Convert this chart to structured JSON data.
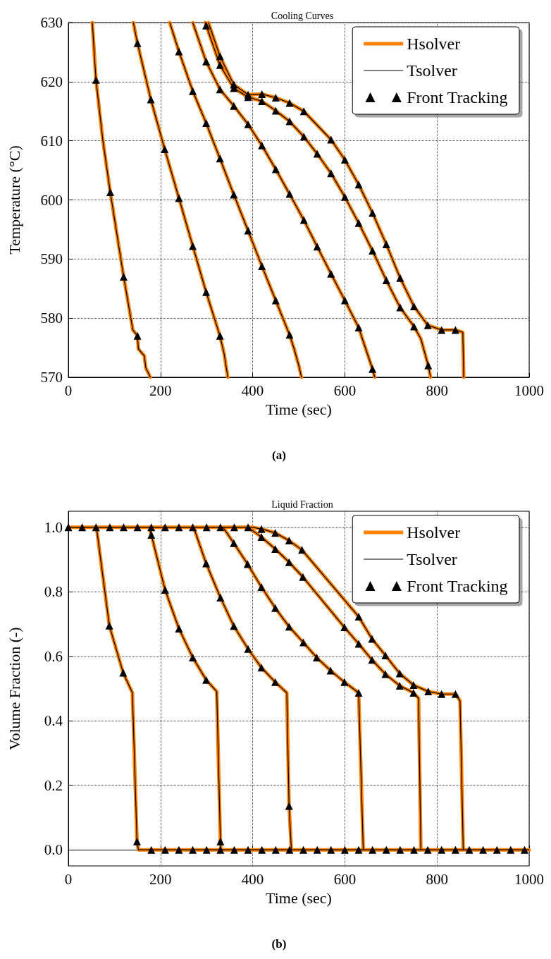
{
  "chart_data": [
    {
      "type": "line",
      "title": "Cooling Curves",
      "xlabel": "Time (sec)",
      "ylabel": "Temperature (°C)",
      "annotations": [
        "(a)"
      ],
      "xlim": [
        0,
        1000
      ],
      "xticks": [
        0,
        200,
        400,
        600,
        800,
        1000
      ],
      "ylim": [
        570,
        630
      ],
      "yticks": [
        570,
        580,
        590,
        600,
        610,
        620,
        630
      ],
      "grid": true,
      "legend": "top right",
      "series": [
        {
          "name": "Hsolver",
          "color": "#ff8000",
          "marker": "none",
          "line_style": "solid",
          "x": [
            52,
            60,
            75,
            91,
            120,
            140,
            150,
            152,
            165,
            168,
            178,
            null,
            141,
            150,
            179,
            209,
            240,
            270,
            299,
            329,
            338,
            346,
            null,
            220,
            240,
            270,
            299,
            329,
            359,
            390,
            420,
            450,
            480,
            490,
            500,
            506,
            null,
            270,
            299,
            329,
            359,
            390,
            420,
            450,
            480,
            511,
            540,
            570,
            600,
            630,
            660,
            665,
            null,
            297,
            329,
            359,
            390,
            420,
            450,
            480,
            511,
            540,
            570,
            600,
            630,
            660,
            690,
            720,
            750,
            765,
            781,
            786,
            null,
            304,
            329,
            359,
            390,
            420,
            450,
            480,
            511,
            570,
            600,
            630,
            660,
            690,
            720,
            750,
            780,
            810,
            840,
            856,
            858
          ],
          "values": [
            630,
            620.3,
            610,
            601.3,
            587,
            578,
            577,
            574.8,
            573.6,
            571.6,
            570,
            null,
            630,
            626.5,
            617,
            608.6,
            600.3,
            592.2,
            584.4,
            577,
            574,
            570,
            null,
            630,
            625.1,
            618.4,
            613,
            607,
            600.9,
            594.8,
            588.8,
            583,
            577.2,
            574.8,
            572,
            570,
            null,
            630,
            623.4,
            618.7,
            615.9,
            612.8,
            609.2,
            605.2,
            601,
            596.6,
            592.1,
            587.5,
            583,
            578.4,
            571.4,
            570,
            null,
            630,
            622.8,
            618.9,
            617.4,
            616.7,
            615.1,
            613.3,
            610.7,
            607.8,
            604.5,
            600.5,
            596.1,
            591.4,
            586.4,
            581.8,
            578.6,
            576.5,
            572,
            570,
            null,
            630,
            624.3,
            619.5,
            617.8,
            617.9,
            617.3,
            616.4,
            615,
            610.2,
            606.8,
            602.6,
            597.8,
            592.5,
            586.8,
            582,
            578.8,
            578,
            578,
            577.6,
            570
          ]
        },
        {
          "name": "Tsolver",
          "color": "#000000",
          "marker": "none",
          "line_style": "solid",
          "x": [
            52,
            60,
            75,
            91,
            120,
            140,
            150,
            152,
            165,
            168,
            178,
            null,
            141,
            150,
            179,
            209,
            240,
            270,
            299,
            329,
            338,
            346,
            null,
            220,
            240,
            270,
            299,
            329,
            359,
            390,
            420,
            450,
            480,
            490,
            500,
            506,
            null,
            270,
            299,
            329,
            359,
            390,
            420,
            450,
            480,
            511,
            540,
            570,
            600,
            630,
            660,
            665,
            null,
            297,
            329,
            359,
            390,
            420,
            450,
            480,
            511,
            540,
            570,
            600,
            630,
            660,
            690,
            720,
            750,
            765,
            781,
            786,
            null,
            304,
            329,
            359,
            390,
            420,
            450,
            480,
            511,
            570,
            600,
            630,
            660,
            690,
            720,
            750,
            780,
            810,
            840,
            856,
            858
          ],
          "values": [
            630,
            620.3,
            610,
            601.3,
            587,
            578,
            577,
            574.8,
            573.6,
            571.6,
            570,
            null,
            630,
            626.5,
            617,
            608.6,
            600.3,
            592.2,
            584.4,
            577,
            574,
            570,
            null,
            630,
            625.1,
            618.4,
            613,
            607,
            600.9,
            594.8,
            588.8,
            583,
            577.2,
            574.8,
            572,
            570,
            null,
            630,
            623.4,
            618.7,
            615.9,
            612.8,
            609.2,
            605.2,
            601,
            596.6,
            592.1,
            587.5,
            583,
            578.4,
            571.4,
            570,
            null,
            630,
            622.8,
            618.9,
            617.4,
            616.7,
            615.1,
            613.3,
            610.7,
            607.8,
            604.5,
            600.5,
            596.1,
            591.4,
            586.4,
            581.8,
            578.6,
            576.5,
            572,
            570,
            null,
            630,
            624.3,
            619.5,
            617.8,
            617.9,
            617.3,
            616.4,
            615,
            610.2,
            606.8,
            602.6,
            597.8,
            592.5,
            586.8,
            582,
            578.8,
            578,
            578,
            577.6,
            570
          ]
        },
        {
          "name": "Front Tracking",
          "type": "scatter",
          "color": "#000000",
          "marker": "triangle",
          "x": [
            60,
            91,
            120,
            150,
            150,
            179,
            209,
            240,
            270,
            299,
            329,
            240,
            270,
            299,
            329,
            359,
            390,
            420,
            450,
            480,
            299,
            329,
            359,
            390,
            420,
            450,
            480,
            511,
            540,
            570,
            600,
            630,
            660,
            299,
            329,
            359,
            390,
            420,
            450,
            480,
            511,
            540,
            570,
            600,
            630,
            660,
            690,
            720,
            750,
            781,
            329,
            359,
            390,
            420,
            450,
            480,
            511,
            570,
            600,
            630,
            660,
            690,
            720,
            750,
            780,
            810,
            840
          ],
          "values": [
            620.3,
            601.3,
            587,
            577,
            626.5,
            617,
            608.6,
            600.3,
            592.2,
            584.4,
            577,
            625.1,
            618.4,
            613,
            607,
            600.9,
            594.8,
            588.8,
            583,
            577.2,
            623.4,
            618.7,
            615.9,
            612.8,
            609.2,
            605.2,
            601,
            596.6,
            592.1,
            587.5,
            583,
            578.4,
            571.4,
            629.5,
            622.8,
            618.9,
            617.4,
            616.7,
            615.1,
            613.3,
            610.7,
            607.8,
            604.5,
            600.5,
            596.1,
            591.4,
            586.4,
            581.8,
            578.6,
            572,
            624.3,
            619.5,
            617.8,
            617.9,
            617.3,
            616.4,
            615,
            610.2,
            606.8,
            602.6,
            597.8,
            592.5,
            586.8,
            582,
            578.8,
            578,
            578
          ]
        }
      ]
    },
    {
      "type": "line",
      "title": "Liquid Fraction",
      "xlabel": "Time (sec)",
      "ylabel": "Volume Fraction (-)",
      "annotations": [
        "(b)"
      ],
      "xlim": [
        0,
        1000
      ],
      "xticks": [
        0,
        200,
        400,
        600,
        800,
        1000
      ],
      "ylim": [
        -0.05,
        1.05
      ],
      "yticks": [
        {
          "value": 0,
          "label": "0.0"
        },
        {
          "value": 0.2,
          "label": "0.2"
        },
        {
          "value": 0.4,
          "label": "0.4"
        },
        {
          "value": 0.6,
          "label": "0.6"
        },
        {
          "value": 0.8,
          "label": "0.8"
        },
        {
          "value": 1,
          "label": "1.0"
        }
      ],
      "grid": true,
      "legend": "top right",
      "series": [
        {
          "name": "Hsolver",
          "color": "#ff8000",
          "marker": "none",
          "line_style": "solid",
          "x": [
            0,
            61,
            89,
            119,
            139,
            149,
            152,
            1000,
            null,
            0,
            175,
            180,
            210,
            240,
            270,
            299,
            322,
            330,
            331,
            1000,
            null,
            0,
            272,
            299,
            330,
            359,
            390,
            419,
            449,
            474,
            479,
            484,
            1000,
            null,
            0,
            336,
            359,
            389,
            419,
            449,
            479,
            510,
            539,
            569,
            599,
            630,
            640,
            1000,
            null,
            0,
            390,
            419,
            449,
            479,
            509,
            599,
            630,
            659,
            688,
            719,
            749,
            760,
            765,
            1000,
            null,
            0,
            400,
            419,
            449,
            479,
            507,
            630,
            659,
            688,
            719,
            749,
            781,
            810,
            840,
            850,
            857,
            1000
          ],
          "values": [
            1,
            1,
            0.695,
            0.549,
            0.487,
            0.026,
            0,
            0,
            null,
            1,
            1,
            0.977,
            0.806,
            0.686,
            0.596,
            0.527,
            0.491,
            0.026,
            0,
            0,
            null,
            1,
            1,
            0.888,
            0.782,
            0.694,
            0.623,
            0.565,
            0.52,
            0.487,
            0.136,
            0,
            0,
            null,
            1,
            1,
            0.951,
            0.886,
            0.815,
            0.75,
            0.692,
            0.643,
            0.596,
            0.556,
            0.52,
            0.487,
            0,
            0,
            null,
            1,
            1,
            0.97,
            0.933,
            0.892,
            0.846,
            0.69,
            0.639,
            0.589,
            0.545,
            0.509,
            0.487,
            0.47,
            0,
            0,
            null,
            1,
            1,
            0.995,
            0.983,
            0.959,
            0.93,
            0.723,
            0.654,
            0.603,
            0.547,
            0.511,
            0.491,
            0.483,
            0.483,
            0.462,
            0,
            0
          ]
        },
        {
          "name": "Tsolver",
          "color": "#000000",
          "marker": "none",
          "line_style": "solid",
          "x": [
            0,
            61,
            89,
            119,
            139,
            149,
            152,
            1000,
            null,
            0,
            175,
            180,
            210,
            240,
            270,
            299,
            322,
            330,
            331,
            1000,
            null,
            0,
            272,
            299,
            330,
            359,
            390,
            419,
            449,
            474,
            479,
            484,
            1000,
            null,
            0,
            336,
            359,
            389,
            419,
            449,
            479,
            510,
            539,
            569,
            599,
            630,
            640,
            1000,
            null,
            0,
            390,
            419,
            449,
            479,
            509,
            599,
            630,
            659,
            688,
            719,
            749,
            760,
            765,
            1000,
            null,
            0,
            400,
            419,
            449,
            479,
            507,
            630,
            659,
            688,
            719,
            749,
            781,
            810,
            840,
            850,
            857,
            1000
          ],
          "values": [
            1,
            1,
            0.695,
            0.549,
            0.487,
            0.026,
            0,
            0,
            null,
            1,
            1,
            0.977,
            0.806,
            0.686,
            0.596,
            0.527,
            0.491,
            0.026,
            0,
            0,
            null,
            1,
            1,
            0.888,
            0.782,
            0.694,
            0.623,
            0.565,
            0.52,
            0.487,
            0.136,
            0,
            0,
            null,
            1,
            1,
            0.951,
            0.886,
            0.815,
            0.75,
            0.692,
            0.643,
            0.596,
            0.556,
            0.52,
            0.487,
            0,
            0,
            null,
            1,
            1,
            0.97,
            0.933,
            0.892,
            0.846,
            0.69,
            0.639,
            0.589,
            0.545,
            0.509,
            0.487,
            0.47,
            0,
            0,
            null,
            1,
            1,
            0.995,
            0.983,
            0.959,
            0.93,
            0.723,
            0.654,
            0.603,
            0.547,
            0.511,
            0.491,
            0.483,
            0.483,
            0.462,
            0,
            0
          ]
        },
        {
          "name": "Front Tracking",
          "type": "scatter",
          "color": "#000000",
          "marker": "triangle",
          "x": [
            0,
            30,
            60,
            90,
            120,
            150,
            180,
            210,
            240,
            270,
            300,
            330,
            360,
            390,
            180,
            210,
            240,
            270,
            300,
            330,
            360,
            390,
            420,
            450,
            480,
            510,
            540,
            570,
            600,
            630,
            660,
            690,
            720,
            750,
            780,
            810,
            840,
            870,
            900,
            930,
            960,
            990,
            89,
            119,
            149,
            180,
            210,
            240,
            270,
            299,
            330,
            299,
            330,
            359,
            390,
            419,
            449,
            479,
            359,
            389,
            419,
            449,
            479,
            510,
            539,
            569,
            599,
            630,
            419,
            449,
            479,
            509,
            599,
            630,
            659,
            688,
            719,
            749,
            419,
            449,
            479,
            507,
            630,
            659,
            688,
            719,
            749,
            781,
            810,
            840
          ],
          "values": [
            1,
            1,
            1,
            1,
            1,
            1,
            1,
            1,
            1,
            1,
            1,
            1,
            1,
            1,
            0,
            0,
            0,
            0,
            0,
            0,
            0,
            0,
            0,
            0,
            0,
            0,
            0,
            0,
            0,
            0,
            0,
            0,
            0,
            0,
            0,
            0,
            0,
            0,
            0,
            0,
            0,
            0,
            0.695,
            0.549,
            0.026,
            0.977,
            0.806,
            0.686,
            0.596,
            0.527,
            0.026,
            0.888,
            0.782,
            0.694,
            0.623,
            0.565,
            0.52,
            0.136,
            0.951,
            0.886,
            0.815,
            0.75,
            0.692,
            0.643,
            0.596,
            0.556,
            0.52,
            0.487,
            0.97,
            0.933,
            0.892,
            0.846,
            0.69,
            0.639,
            0.589,
            0.545,
            0.509,
            0.487,
            0.995,
            0.983,
            0.959,
            0.93,
            0.723,
            0.654,
            0.603,
            0.547,
            0.511,
            0.491,
            0.483,
            0.483
          ]
        }
      ]
    }
  ]
}
